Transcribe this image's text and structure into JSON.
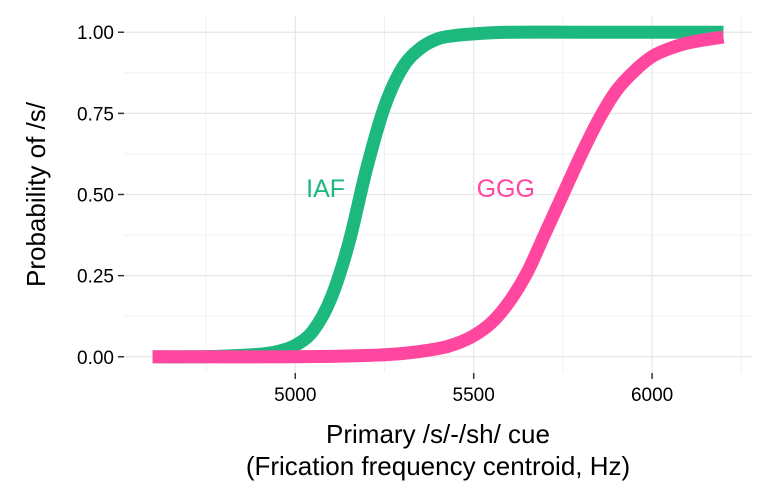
{
  "chart_data": {
    "type": "line",
    "xlabel": [
      "Primary /s/-/sh/ cue",
      "(Frication frequency centroid, Hz)"
    ],
    "ylabel": "Probability of /s/",
    "xlim": [
      4520,
      6280
    ],
    "ylim": [
      -0.05,
      1.05
    ],
    "x_ticks": [
      5000,
      5500,
      6000
    ],
    "x_tick_labels": [
      "5000",
      "5500",
      "6000"
    ],
    "x_minor_ticks": [
      4750,
      5250,
      5750,
      6250
    ],
    "y_ticks": [
      0,
      0.25,
      0.5,
      0.75,
      1
    ],
    "y_tick_labels": [
      "0.00",
      "0.25",
      "0.50",
      "0.75",
      "1.00"
    ],
    "y_minor_ticks": [
      0.125,
      0.375,
      0.625,
      0.875
    ],
    "grid": true,
    "legend": "none",
    "series": [
      {
        "name": "IAF",
        "color": "#1db87e",
        "label_at": [
          5085,
          0.52
        ],
        "x": [
          4600,
          4700,
          4800,
          4900,
          4950,
          5000,
          5050,
          5100,
          5150,
          5200,
          5250,
          5300,
          5350,
          5400,
          5450,
          5500,
          5600,
          5800,
          6000,
          6200
        ],
        "y": [
          0.0,
          0.0,
          0.002,
          0.008,
          0.016,
          0.035,
          0.08,
          0.18,
          0.35,
          0.58,
          0.77,
          0.89,
          0.95,
          0.98,
          0.99,
          0.995,
          1.0,
          1.0,
          1.0,
          1.0
        ]
      },
      {
        "name": "GGG",
        "color": "#ff479f",
        "label_at": [
          5590,
          0.52
        ],
        "x": [
          4600,
          5000,
          5200,
          5300,
          5400,
          5450,
          5500,
          5550,
          5600,
          5650,
          5700,
          5750,
          5800,
          5850,
          5900,
          5950,
          6000,
          6050,
          6100,
          6150,
          6200
        ],
        "y": [
          0.0,
          0.0,
          0.004,
          0.01,
          0.025,
          0.04,
          0.065,
          0.105,
          0.17,
          0.26,
          0.38,
          0.5,
          0.62,
          0.73,
          0.82,
          0.88,
          0.925,
          0.95,
          0.967,
          0.977,
          0.985
        ]
      }
    ]
  }
}
